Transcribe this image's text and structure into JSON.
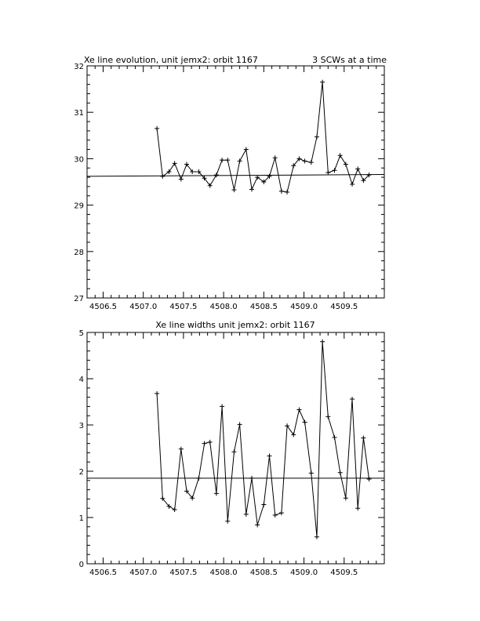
{
  "chart_data": [
    {
      "type": "line",
      "title": "Xe line evolution, unit jemx2: orbit 1167",
      "subtitle": "3 SCWs at a time",
      "xlabel": "",
      "ylabel": "",
      "xlim": [
        4506.3,
        4510.0
      ],
      "ylim": [
        27,
        32
      ],
      "x_ticks": [
        4506.5,
        4507.0,
        4507.5,
        4508.0,
        4508.5,
        4509.0,
        4509.5
      ],
      "x_tick_labels": [
        "4506.5",
        "4507.0",
        "4507.5",
        "4508.0",
        "4508.5",
        "4509.0",
        "4509.5"
      ],
      "y_ticks": [
        27,
        28,
        29,
        30,
        31,
        32
      ],
      "y_tick_labels": [
        "27",
        "28",
        "29",
        "30",
        "31",
        "32"
      ],
      "grid": false,
      "reference_line": {
        "x": [
          4506.3,
          4510.0
        ],
        "y": [
          29.62,
          29.66
        ]
      },
      "series": [
        {
          "x": [
            4507.17,
            4507.24,
            4507.32,
            4507.39,
            4507.47,
            4507.54,
            4507.61,
            4507.69,
            4507.76,
            4507.83,
            4507.91,
            4507.98,
            4508.05,
            4508.13,
            4508.2,
            4508.28,
            4508.35,
            4508.42,
            4508.5,
            4508.57,
            4508.64,
            4508.72,
            4508.79,
            4508.87,
            4508.94,
            4509.01,
            4509.09,
            4509.16,
            4509.23,
            4509.3,
            4509.38,
            4509.45,
            4509.52,
            4509.6,
            4509.67,
            4509.74,
            4509.81
          ],
          "values": [
            30.65,
            29.62,
            29.72,
            29.9,
            29.56,
            29.88,
            29.72,
            29.72,
            29.58,
            29.42,
            29.65,
            29.97,
            29.97,
            29.33,
            29.95,
            30.2,
            29.34,
            29.6,
            29.5,
            29.62,
            30.02,
            29.3,
            29.28,
            29.85,
            30.0,
            29.95,
            29.92,
            30.47,
            31.65,
            29.7,
            29.75,
            30.07,
            29.88,
            29.45,
            29.78,
            29.53,
            29.65
          ]
        }
      ]
    },
    {
      "type": "line",
      "title": "Xe line widths unit jemx2: orbit 1167",
      "xlabel": "",
      "ylabel": "",
      "xlim": [
        4506.3,
        4510.0
      ],
      "ylim": [
        0,
        5
      ],
      "x_ticks": [
        4506.5,
        4507.0,
        4507.5,
        4508.0,
        4508.5,
        4509.0,
        4509.5
      ],
      "x_tick_labels": [
        "4506.5",
        "4507.0",
        "4507.5",
        "4508.0",
        "4508.5",
        "4509.0",
        "4509.5"
      ],
      "y_ticks": [
        0,
        1,
        2,
        3,
        4,
        5
      ],
      "y_tick_labels": [
        "0",
        "1",
        "2",
        "3",
        "4",
        "5"
      ],
      "grid": false,
      "reference_line": {
        "x": [
          4506.3,
          4510.0
        ],
        "y": [
          1.85,
          1.85
        ]
      },
      "series": [
        {
          "x": [
            4507.17,
            4507.24,
            4507.32,
            4507.39,
            4507.47,
            4507.54,
            4507.61,
            4507.69,
            4507.76,
            4507.83,
            4507.91,
            4507.98,
            4508.05,
            4508.13,
            4508.2,
            4508.28,
            4508.35,
            4508.42,
            4508.5,
            4508.57,
            4508.64,
            4508.72,
            4508.79,
            4508.87,
            4508.94,
            4509.01,
            4509.09,
            4509.16,
            4509.23,
            4509.3,
            4509.38,
            4509.45,
            4509.52,
            4509.6,
            4509.67,
            4509.74,
            4509.81
          ],
          "values": [
            3.68,
            1.41,
            1.24,
            1.17,
            2.48,
            1.57,
            1.42,
            1.85,
            2.6,
            2.63,
            1.52,
            3.4,
            0.92,
            2.42,
            3.01,
            1.07,
            1.85,
            0.84,
            1.28,
            2.33,
            1.05,
            1.1,
            2.98,
            2.79,
            3.33,
            3.06,
            1.96,
            0.58,
            4.8,
            3.18,
            2.73,
            1.97,
            1.42,
            3.56,
            1.2,
            2.72,
            1.83
          ]
        }
      ]
    }
  ]
}
